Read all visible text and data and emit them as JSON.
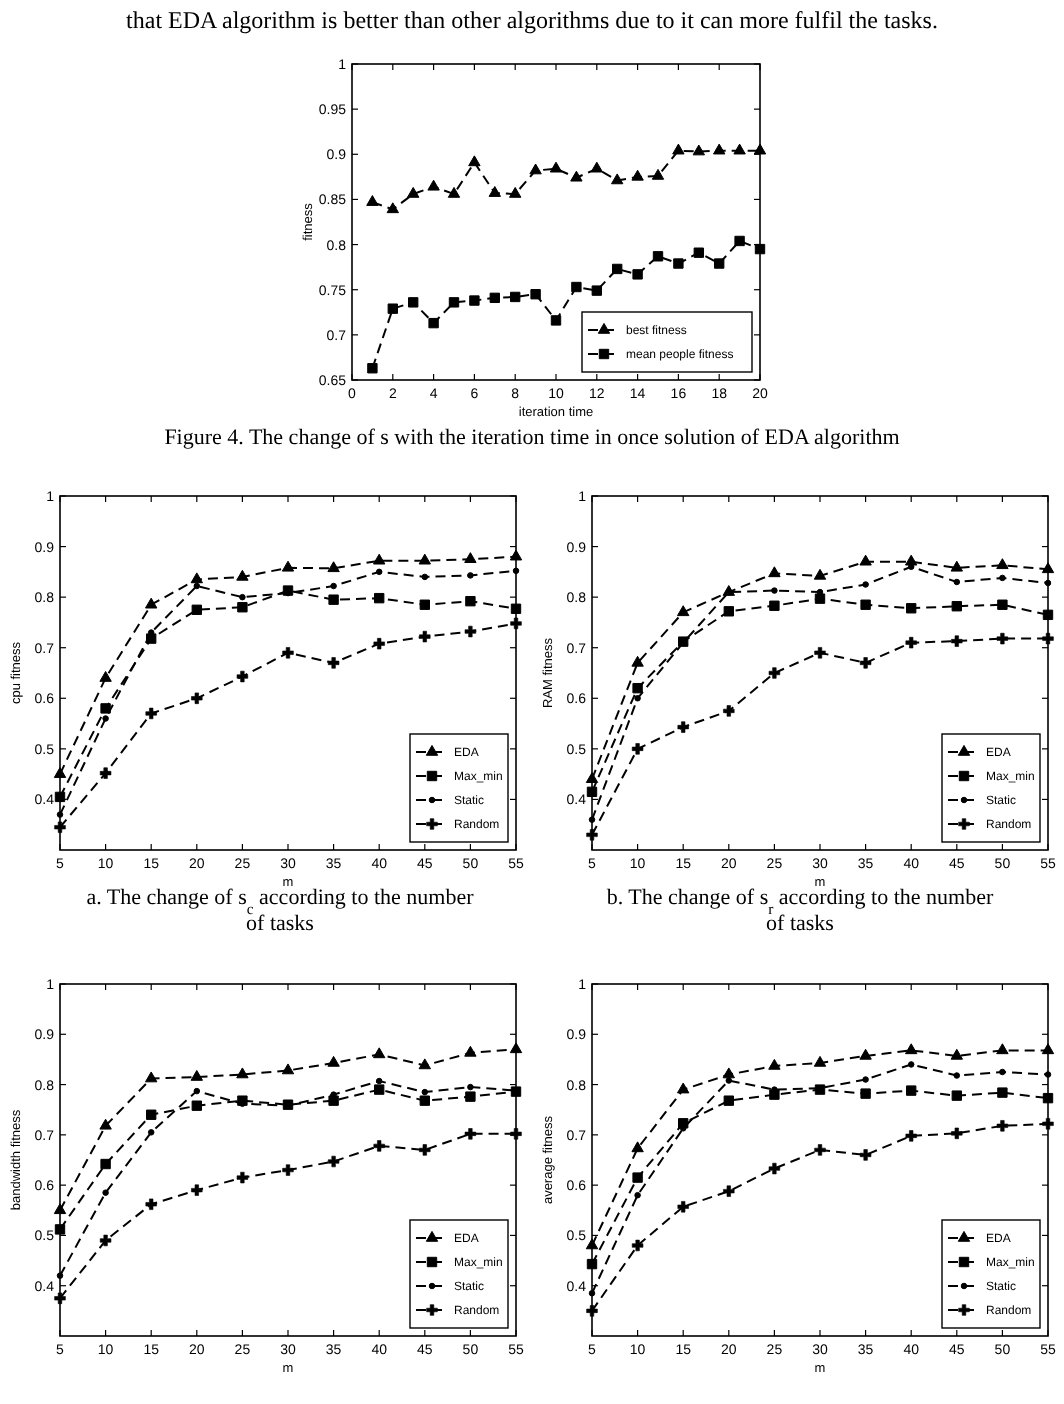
{
  "chart_data": [
    {
      "type": "line",
      "xlabel": "iteration time",
      "ylabel": "fitness",
      "xlim": [
        0,
        20
      ],
      "xticks": [
        0,
        2,
        4,
        6,
        8,
        10,
        12,
        14,
        16,
        18,
        20
      ],
      "ylim": [
        0.65,
        1
      ],
      "yticks": [
        0.65,
        0.7,
        0.75,
        0.8,
        0.85,
        0.9,
        0.95,
        1
      ],
      "grid": false,
      "legend": "bottom right",
      "line_style": "dashed",
      "x": [
        1,
        2,
        3,
        4,
        5,
        6,
        7,
        8,
        9,
        10,
        11,
        12,
        13,
        14,
        15,
        16,
        17,
        18,
        19,
        20
      ],
      "series": [
        {
          "name": "best fitness",
          "color": "#000000",
          "marker": "triangle",
          "values": [
            0.847,
            0.839,
            0.856,
            0.864,
            0.856,
            0.891,
            0.857,
            0.856,
            0.882,
            0.884,
            0.874,
            0.884,
            0.871,
            0.875,
            0.876,
            0.904,
            0.903,
            0.904,
            0.904,
            0.904
          ]
        },
        {
          "name": "mean people fitness",
          "color": "#000000",
          "marker": "square",
          "values": [
            0.663,
            0.729,
            0.736,
            0.713,
            0.736,
            0.738,
            0.741,
            0.742,
            0.745,
            0.716,
            0.753,
            0.749,
            0.773,
            0.767,
            0.787,
            0.779,
            0.791,
            0.779,
            0.804,
            0.795
          ]
        }
      ],
      "annotations": [
        "that EDA algorithm is better than other algorithms due to it can more fulfil the tasks.",
        "Figure 4. The change of s with the iteration time in once solution of EDA algorithm"
      ]
    },
    {
      "type": "line",
      "xlabel": "m",
      "ylabel": "cpu fitness",
      "xlim": [
        5,
        55
      ],
      "xticks": [
        5,
        10,
        15,
        20,
        25,
        30,
        35,
        40,
        45,
        50,
        55
      ],
      "ylim": [
        0.3,
        1
      ],
      "yticks": [
        0.4,
        0.5,
        0.6,
        0.7,
        0.8,
        0.9,
        1
      ],
      "grid": false,
      "legend": "bottom right",
      "line_style": "dashed",
      "x": [
        5,
        10,
        15,
        20,
        25,
        30,
        35,
        40,
        45,
        50,
        55
      ],
      "series": [
        {
          "name": "EDA",
          "color": "#000000",
          "marker": "triangle",
          "values": [
            0.45,
            0.64,
            0.785,
            0.835,
            0.84,
            0.858,
            0.857,
            0.872,
            0.872,
            0.875,
            0.88
          ]
        },
        {
          "name": "Max_min",
          "color": "#000000",
          "marker": "square",
          "values": [
            0.405,
            0.58,
            0.718,
            0.775,
            0.78,
            0.813,
            0.795,
            0.798,
            0.785,
            0.792,
            0.777
          ]
        },
        {
          "name": "Static",
          "color": "#000000",
          "marker": "circle",
          "values": [
            0.37,
            0.56,
            0.73,
            0.822,
            0.8,
            0.808,
            0.822,
            0.85,
            0.84,
            0.843,
            0.852
          ]
        },
        {
          "name": "Random",
          "color": "#000000",
          "marker": "cross",
          "values": [
            0.345,
            0.452,
            0.57,
            0.6,
            0.643,
            0.69,
            0.67,
            0.708,
            0.722,
            0.732,
            0.748
          ]
        }
      ],
      "annotations": [
        "a. The change of s$_{c}$ according to the number of tasks"
      ]
    },
    {
      "type": "line",
      "xlabel": "m",
      "ylabel": "RAM fitness",
      "xlim": [
        5,
        55
      ],
      "xticks": [
        5,
        10,
        15,
        20,
        25,
        30,
        35,
        40,
        45,
        50,
        55
      ],
      "ylim": [
        0.3,
        1
      ],
      "yticks": [
        0.4,
        0.5,
        0.6,
        0.7,
        0.8,
        0.9,
        1
      ],
      "grid": false,
      "legend": "bottom right",
      "line_style": "dashed",
      "x": [
        5,
        10,
        15,
        20,
        25,
        30,
        35,
        40,
        45,
        50,
        55
      ],
      "series": [
        {
          "name": "EDA",
          "color": "#000000",
          "marker": "triangle",
          "values": [
            0.44,
            0.67,
            0.77,
            0.81,
            0.847,
            0.842,
            0.87,
            0.87,
            0.858,
            0.863,
            0.855
          ]
        },
        {
          "name": "Max_min",
          "color": "#000000",
          "marker": "square",
          "values": [
            0.415,
            0.62,
            0.712,
            0.772,
            0.783,
            0.797,
            0.785,
            0.778,
            0.782,
            0.785,
            0.765
          ]
        },
        {
          "name": "Static",
          "color": "#000000",
          "marker": "circle",
          "values": [
            0.36,
            0.6,
            0.71,
            0.81,
            0.813,
            0.81,
            0.825,
            0.86,
            0.83,
            0.838,
            0.828
          ]
        },
        {
          "name": "Random",
          "color": "#000000",
          "marker": "cross",
          "values": [
            0.33,
            0.5,
            0.543,
            0.575,
            0.65,
            0.69,
            0.67,
            0.71,
            0.713,
            0.718,
            0.718
          ]
        }
      ],
      "annotations": [
        "b. The change of s$_{r}$ according to the number of tasks"
      ]
    },
    {
      "type": "line",
      "xlabel": "m",
      "ylabel": "bandwidth fitness",
      "xlim": [
        5,
        55
      ],
      "xticks": [
        5,
        10,
        15,
        20,
        25,
        30,
        35,
        40,
        45,
        50,
        55
      ],
      "ylim": [
        0.3,
        1
      ],
      "yticks": [
        0.4,
        0.5,
        0.6,
        0.7,
        0.8,
        0.9,
        1
      ],
      "grid": false,
      "legend": "bottom right",
      "line_style": "dashed",
      "x": [
        5,
        10,
        15,
        20,
        25,
        30,
        35,
        40,
        45,
        50,
        55
      ],
      "series": [
        {
          "name": "EDA",
          "color": "#000000",
          "marker": "triangle",
          "values": [
            0.55,
            0.718,
            0.812,
            0.815,
            0.82,
            0.828,
            0.843,
            0.86,
            0.838,
            0.863,
            0.87
          ]
        },
        {
          "name": "Max_min",
          "color": "#000000",
          "marker": "square",
          "values": [
            0.512,
            0.642,
            0.74,
            0.758,
            0.768,
            0.76,
            0.768,
            0.79,
            0.768,
            0.776,
            0.786
          ]
        },
        {
          "name": "Static",
          "color": "#000000",
          "marker": "circle",
          "values": [
            0.42,
            0.585,
            0.705,
            0.787,
            0.762,
            0.758,
            0.78,
            0.807,
            0.785,
            0.795,
            0.788
          ]
        },
        {
          "name": "Random",
          "color": "#000000",
          "marker": "cross",
          "values": [
            0.375,
            0.49,
            0.562,
            0.59,
            0.615,
            0.63,
            0.647,
            0.678,
            0.67,
            0.702,
            0.702
          ]
        }
      ]
    },
    {
      "type": "line",
      "xlabel": "m",
      "ylabel": "average fitness",
      "xlim": [
        5,
        55
      ],
      "xticks": [
        5,
        10,
        15,
        20,
        25,
        30,
        35,
        40,
        45,
        50,
        55
      ],
      "ylim": [
        0.3,
        1
      ],
      "yticks": [
        0.4,
        0.5,
        0.6,
        0.7,
        0.8,
        0.9,
        1
      ],
      "grid": false,
      "legend": "bottom right",
      "line_style": "dashed",
      "x": [
        5,
        10,
        15,
        20,
        25,
        30,
        35,
        40,
        45,
        50,
        55
      ],
      "series": [
        {
          "name": "EDA",
          "color": "#000000",
          "marker": "triangle",
          "values": [
            0.48,
            0.673,
            0.79,
            0.82,
            0.837,
            0.843,
            0.857,
            0.868,
            0.857,
            0.868,
            0.868
          ]
        },
        {
          "name": "Max_min",
          "color": "#000000",
          "marker": "square",
          "values": [
            0.443,
            0.615,
            0.723,
            0.768,
            0.78,
            0.79,
            0.782,
            0.788,
            0.778,
            0.784,
            0.773
          ]
        },
        {
          "name": "Static",
          "color": "#000000",
          "marker": "circle",
          "values": [
            0.385,
            0.58,
            0.713,
            0.808,
            0.79,
            0.793,
            0.81,
            0.84,
            0.818,
            0.825,
            0.82
          ]
        },
        {
          "name": "Random",
          "color": "#000000",
          "marker": "cross",
          "values": [
            0.35,
            0.48,
            0.557,
            0.588,
            0.633,
            0.67,
            0.66,
            0.698,
            0.703,
            0.718,
            0.722
          ]
        }
      ]
    }
  ]
}
